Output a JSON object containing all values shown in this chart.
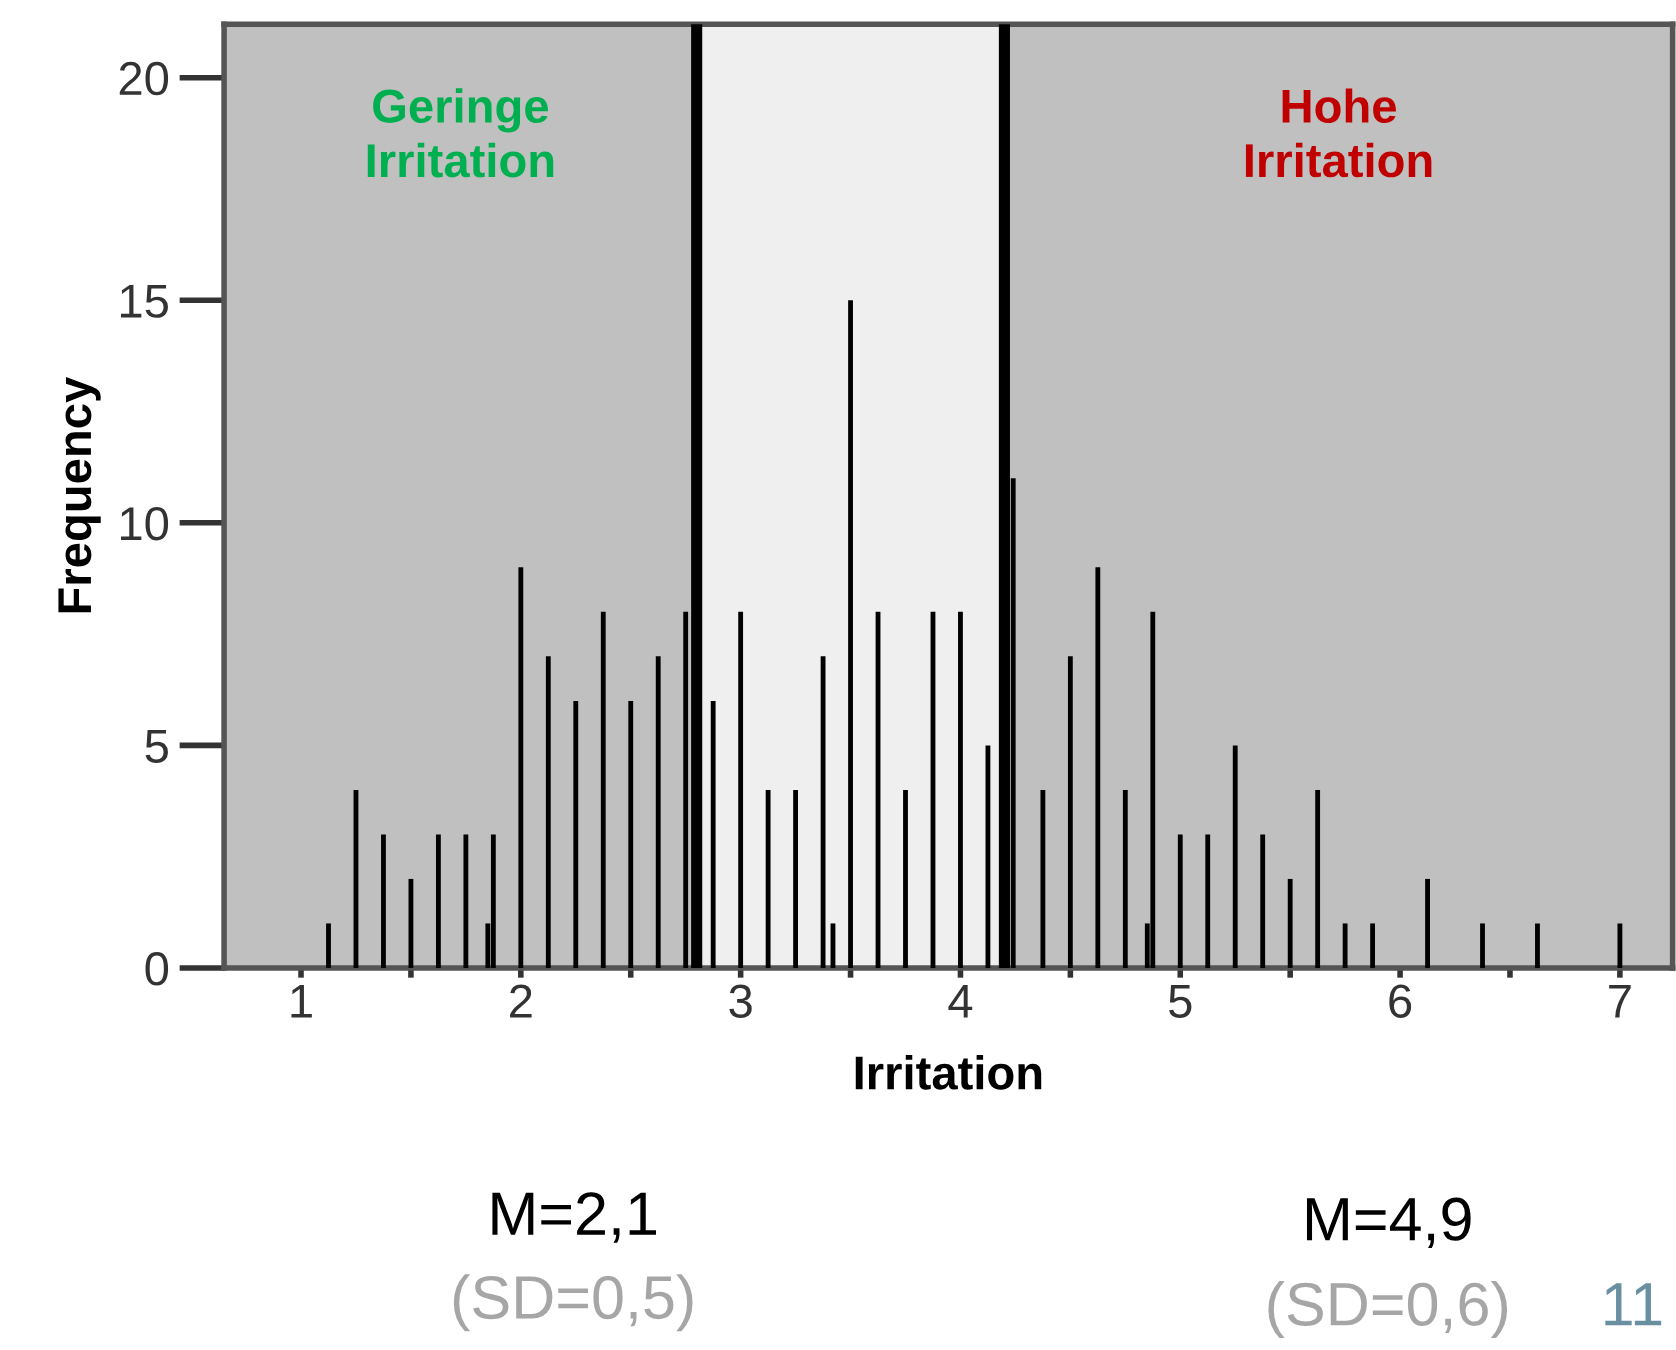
{
  "chart_data": {
    "type": "bar",
    "xlabel": "Irritation",
    "ylabel": "Frequency",
    "x": [
      1.125,
      1.25,
      1.375,
      1.5,
      1.625,
      1.75,
      1.85,
      1.875,
      2.0,
      2.125,
      2.25,
      2.375,
      2.5,
      2.625,
      2.75,
      2.875,
      3.0,
      3.125,
      3.25,
      3.375,
      3.42,
      3.5,
      3.625,
      3.75,
      3.875,
      4.0,
      4.125,
      4.24,
      4.375,
      4.5,
      4.625,
      4.75,
      4.85,
      4.875,
      5.0,
      5.125,
      5.25,
      5.375,
      5.5,
      5.625,
      5.75,
      5.875,
      6.125,
      6.375,
      6.625,
      7.0
    ],
    "values": [
      1,
      4,
      3,
      2,
      3,
      3,
      1,
      3,
      9,
      7,
      6,
      8,
      6,
      7,
      8,
      6,
      8,
      4,
      4,
      7,
      1,
      15,
      8,
      4,
      8,
      8,
      5,
      11,
      4,
      7,
      9,
      4,
      1,
      8,
      3,
      3,
      5,
      3,
      2,
      4,
      1,
      1,
      2,
      1,
      1,
      1
    ],
    "color": "#000000",
    "xlim": [
      0.65,
      7.24
    ],
    "ylim": [
      0,
      21.2
    ],
    "xticks": [
      1,
      {
        "value": 1.5,
        "label": null
      },
      2,
      {
        "value": 2.5,
        "label": null
      },
      3,
      {
        "value": 3.5,
        "label": null
      },
      4,
      {
        "value": 4.5,
        "label": null
      },
      5,
      {
        "value": 5.5,
        "label": null
      },
      6,
      {
        "value": 6.5,
        "label": null
      },
      7
    ],
    "yticks": [
      0,
      5,
      10,
      15,
      20
    ],
    "grid": false,
    "legend": false,
    "bands": [
      {
        "axis": "x",
        "from": 0.65,
        "to": 2.8,
        "label": "Geringe\nIrritation",
        "color": "#c0c0c0"
      },
      {
        "axis": "x",
        "from": 2.8,
        "to": 4.2,
        "label": null,
        "color": "#efefef"
      },
      {
        "axis": "x",
        "from": 4.2,
        "to": 7.24,
        "label": "Hohe\nIrritation",
        "color": "#c0c0c0"
      }
    ],
    "ref_lines": [
      {
        "axis": "x",
        "value": 2.8,
        "label": null,
        "color": "#000000"
      },
      {
        "axis": "x",
        "value": 4.2,
        "label": null,
        "color": "#000000"
      }
    ],
    "annotations": [
      "M=2,1",
      "(SD=0,5)",
      "M=4,9",
      "(SD=0,6)",
      "11"
    ]
  }
}
